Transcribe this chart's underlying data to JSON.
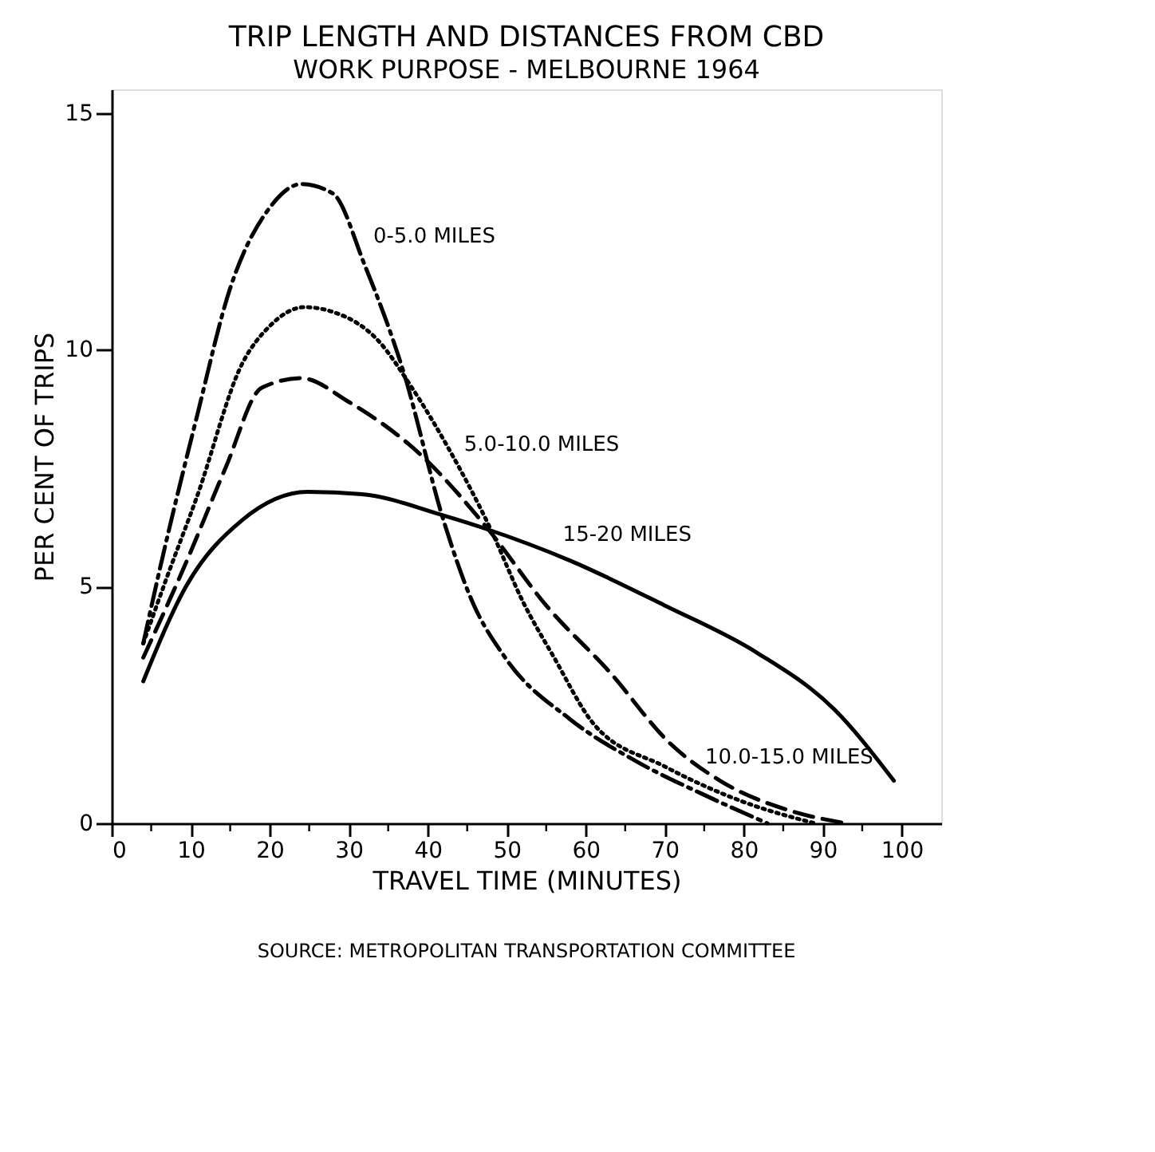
{
  "chart_data": {
    "type": "line",
    "title": "TRIP LENGTH AND DISTANCES FROM CBD",
    "subtitle": "WORK PURPOSE - MELBOURNE 1964",
    "xlabel": "TRAVEL TIME     (MINUTES)",
    "ylabel": "PER CENT OF TRIPS",
    "annotations": [
      "SOURCE: METROPOLITAN TRANSPORTATION COMMITTEE"
    ],
    "xlim": [
      0,
      105
    ],
    "ylim": [
      0,
      15.5
    ],
    "xticks": [
      0,
      {
        "value": 5,
        "label": null
      },
      10,
      {
        "value": 15,
        "label": null
      },
      20,
      {
        "value": 25,
        "label": null
      },
      30,
      {
        "value": 35,
        "label": null
      },
      40,
      {
        "value": 45,
        "label": null
      },
      50,
      {
        "value": 55,
        "label": null
      },
      60,
      {
        "value": 65,
        "label": null
      },
      70,
      {
        "value": 75,
        "label": null
      },
      80,
      {
        "value": 85,
        "label": null
      },
      90,
      {
        "value": 95,
        "label": null
      },
      100
    ],
    "yticks": [
      0,
      5,
      10,
      15
    ],
    "grid": false,
    "legend": false,
    "marker": "none",
    "series": [
      {
        "name": "0-5.0 MILES",
        "color": "#000000",
        "line_style": "dashdot",
        "x": [
          4,
          6,
          10.8,
          15,
          20,
          24,
          28,
          32,
          37,
          42,
          45.6,
          49.8,
          58,
          66.5,
          75,
          83
        ],
        "values": [
          3.8,
          5.3,
          8.6,
          11.3,
          13.0,
          13.5,
          13.3,
          11.8,
          9.5,
          6.4,
          4.7,
          3.5,
          2.2,
          1.3,
          0.6,
          0
        ]
      },
      {
        "name": "5.0-10.0 MILES",
        "color": "#000000",
        "line_style": "dotted",
        "x": [
          4,
          7,
          10.8,
          16.5,
          20,
          24.4,
          28,
          33.7,
          38,
          42.7,
          48,
          52,
          56,
          61,
          70,
          80,
          89
        ],
        "values": [
          3.8,
          5.2,
          6.9,
          9.7,
          10.5,
          10.9,
          10.8,
          10.2,
          9.2,
          7.9,
          6.2,
          4.7,
          3.5,
          2.1,
          1.2,
          0.45,
          0
        ]
      },
      {
        "name": "10.0-15.0 MILES",
        "color": "#000000",
        "line_style": "dashed",
        "x": [
          4,
          9.4,
          14.4,
          19,
          24,
          30,
          39,
          47.7,
          55,
          63,
          70.6,
          77,
          86,
          93
        ],
        "values": [
          3.5,
          5.5,
          7.5,
          9.2,
          9.4,
          8.9,
          7.8,
          6.2,
          4.6,
          3.2,
          1.7,
          0.9,
          0.26,
          0
        ]
      },
      {
        "name": "15-20 MILES",
        "color": "#000000",
        "line_style": "solid",
        "x": [
          4,
          9.4,
          16.5,
          24.8,
          31.7,
          42,
          47.7,
          58,
          70,
          81.7,
          91.5,
          99
        ],
        "values": [
          3.0,
          5.0,
          6.4,
          7.0,
          6.95,
          6.5,
          6.2,
          5.55,
          4.6,
          3.6,
          2.4,
          0.9
        ]
      }
    ]
  }
}
